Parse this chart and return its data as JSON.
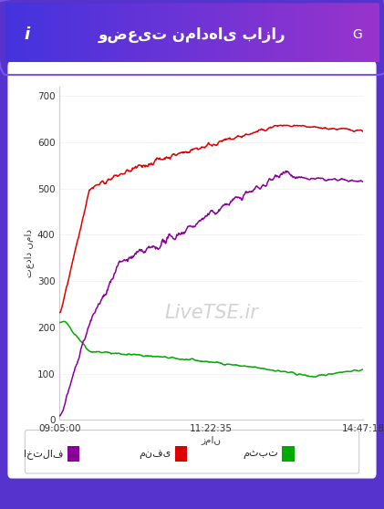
{
  "title": "وضعیت نمادهای بازار",
  "ylabel": "تعداد نماد",
  "xlabel": "زمان",
  "watermark": "LiveTSE.ir",
  "xtick_labels": [
    "09:05:00",
    "11:22:35",
    "14:47:18"
  ],
  "ytick_labels": [
    "0",
    "100",
    "200",
    "300",
    "400",
    "500",
    "600",
    "700"
  ],
  "ylim": [
    0,
    720
  ],
  "legend_labels": [
    "مثبت",
    "منفی",
    "اختلاف"
  ],
  "legend_colors": [
    "#00aa00",
    "#dd0000",
    "#880099"
  ],
  "green_color": "#00aa00",
  "red_color": "#dd0000",
  "purple_color": "#880099",
  "header_gradient_left": "#4433cc",
  "header_gradient_right": "#8833cc",
  "outer_bg": "#5533cc",
  "card_bg": "#ffffff",
  "title_color": "#ffffff"
}
